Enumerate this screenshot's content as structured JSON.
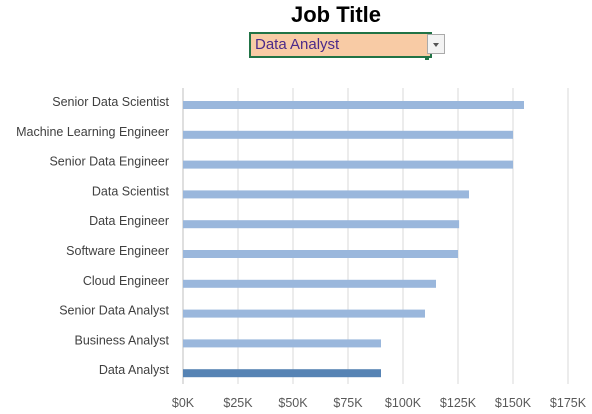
{
  "header": {
    "title": "Job Title"
  },
  "selector": {
    "value": "Data Analyst"
  },
  "colors": {
    "bar": "#9ab7dc",
    "highlight": "#5683b4",
    "grid": "#d9d9d9"
  },
  "chart_data": {
    "type": "bar",
    "orientation": "horizontal",
    "categories": [
      "Senior Data Scientist",
      "Machine Learning Engineer",
      "Senior Data Engineer",
      "Data Scientist",
      "Data Engineer",
      "Software Engineer",
      "Cloud Engineer",
      "Senior Data Analyst",
      "Business Analyst",
      "Data Analyst"
    ],
    "values": [
      155000,
      150000,
      150000,
      130000,
      125500,
      125000,
      115000,
      110000,
      90000,
      90000
    ],
    "highlight": "Data Analyst",
    "xlim": [
      0,
      175000
    ],
    "xticks": [
      "$0K",
      "$25K",
      "$50K",
      "$75K",
      "$100K",
      "$125K",
      "$150K",
      "$175K"
    ],
    "grid": true,
    "legend": "none"
  }
}
